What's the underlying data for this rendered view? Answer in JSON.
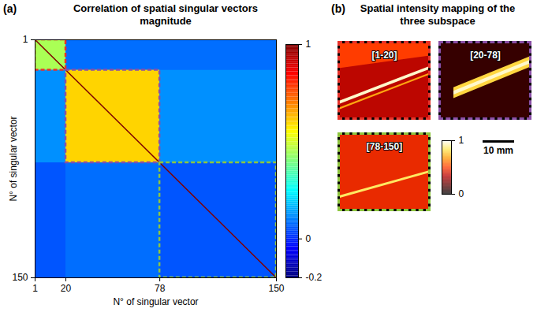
{
  "chart_data": [
    {
      "type": "heatmap",
      "panel": "(a)",
      "title": "Correlation of spatial singular vectors magnitude",
      "x_label": "N° of singular vector",
      "y_label": "N° of singular vector",
      "xlim": [
        1,
        150
      ],
      "ylim": [
        1,
        150
      ],
      "xticks": [
        1,
        20,
        78,
        150
      ],
      "yticks": [
        1,
        150
      ],
      "cells": [
        {
          "x": [
            1,
            150
          ],
          "y": [
            1,
            150
          ],
          "value": 0.05
        },
        {
          "x": [
            20,
            150
          ],
          "y": [
            1,
            20
          ],
          "value": 0.08
        },
        {
          "x": [
            1,
            20
          ],
          "y": [
            20,
            78
          ],
          "value": 0.12
        },
        {
          "x": [
            78,
            150
          ],
          "y": [
            20,
            78
          ],
          "value": 0.12
        },
        {
          "x": [
            20,
            78
          ],
          "y": [
            78,
            150
          ],
          "value": 0.08
        },
        {
          "x": [
            1,
            20
          ],
          "y": [
            1,
            20
          ],
          "value": 0.45
        },
        {
          "x": [
            20,
            78
          ],
          "y": [
            20,
            78
          ],
          "value": 0.6
        }
      ],
      "diagonal_value": 1,
      "subspaces": [
        {
          "label": "[1-20]",
          "start": 1,
          "end": 20,
          "color": "#e8322a"
        },
        {
          "label": "[20-78]",
          "start": 20,
          "end": 78,
          "color": "#8a4fa6"
        },
        {
          "label": "[78-150]",
          "start": 78,
          "end": 150,
          "color": "#8dc63f"
        }
      ],
      "colorbar": {
        "range": [
          -0.2,
          1
        ],
        "ticks": [
          1,
          0,
          -0.2
        ]
      }
    },
    {
      "type": "image",
      "panel": "(b)",
      "title": "Spatial intensity mapping of the three subspace",
      "xlim": [
        0,
        28
      ],
      "ylim": [
        0,
        24
      ],
      "images": [
        {
          "label": "[1-20]",
          "color": "#e8322a",
          "background": 0.35,
          "bands": [
            {
              "from": [
                0,
                4
              ],
              "to": [
                28,
                0
              ],
              "width": 8,
              "value": 0.5
            },
            {
              "from": [
                0,
                21
              ],
              "to": [
                28,
                10
              ],
              "width": 0.6,
              "value": 0.7
            },
            {
              "from": [
                0,
                19
              ],
              "to": [
                28,
                8
              ],
              "width": 1,
              "value": 0.95
            }
          ]
        },
        {
          "label": "[20-78]",
          "color": "#8a4fa6",
          "background": 0.1,
          "bands": [
            {
              "from": [
                4,
                16
              ],
              "to": [
                28,
                6
              ],
              "width": 3.5,
              "value": 0.8
            },
            {
              "from": [
                4,
                16
              ],
              "to": [
                28,
                6
              ],
              "width": 1.2,
              "value": 0.95
            }
          ]
        },
        {
          "label": "[78-150]",
          "color": "#8dc63f",
          "background": 0.45,
          "bands": [
            {
              "from": [
                0,
                20
              ],
              "to": [
                28,
                12
              ],
              "width": 0.8,
              "value": 0.85
            }
          ]
        }
      ],
      "colorbar": {
        "range": [
          0,
          1
        ],
        "ticks": [
          1,
          0
        ]
      },
      "scale_bar": {
        "length": 10,
        "label": "10 mm"
      }
    }
  ]
}
